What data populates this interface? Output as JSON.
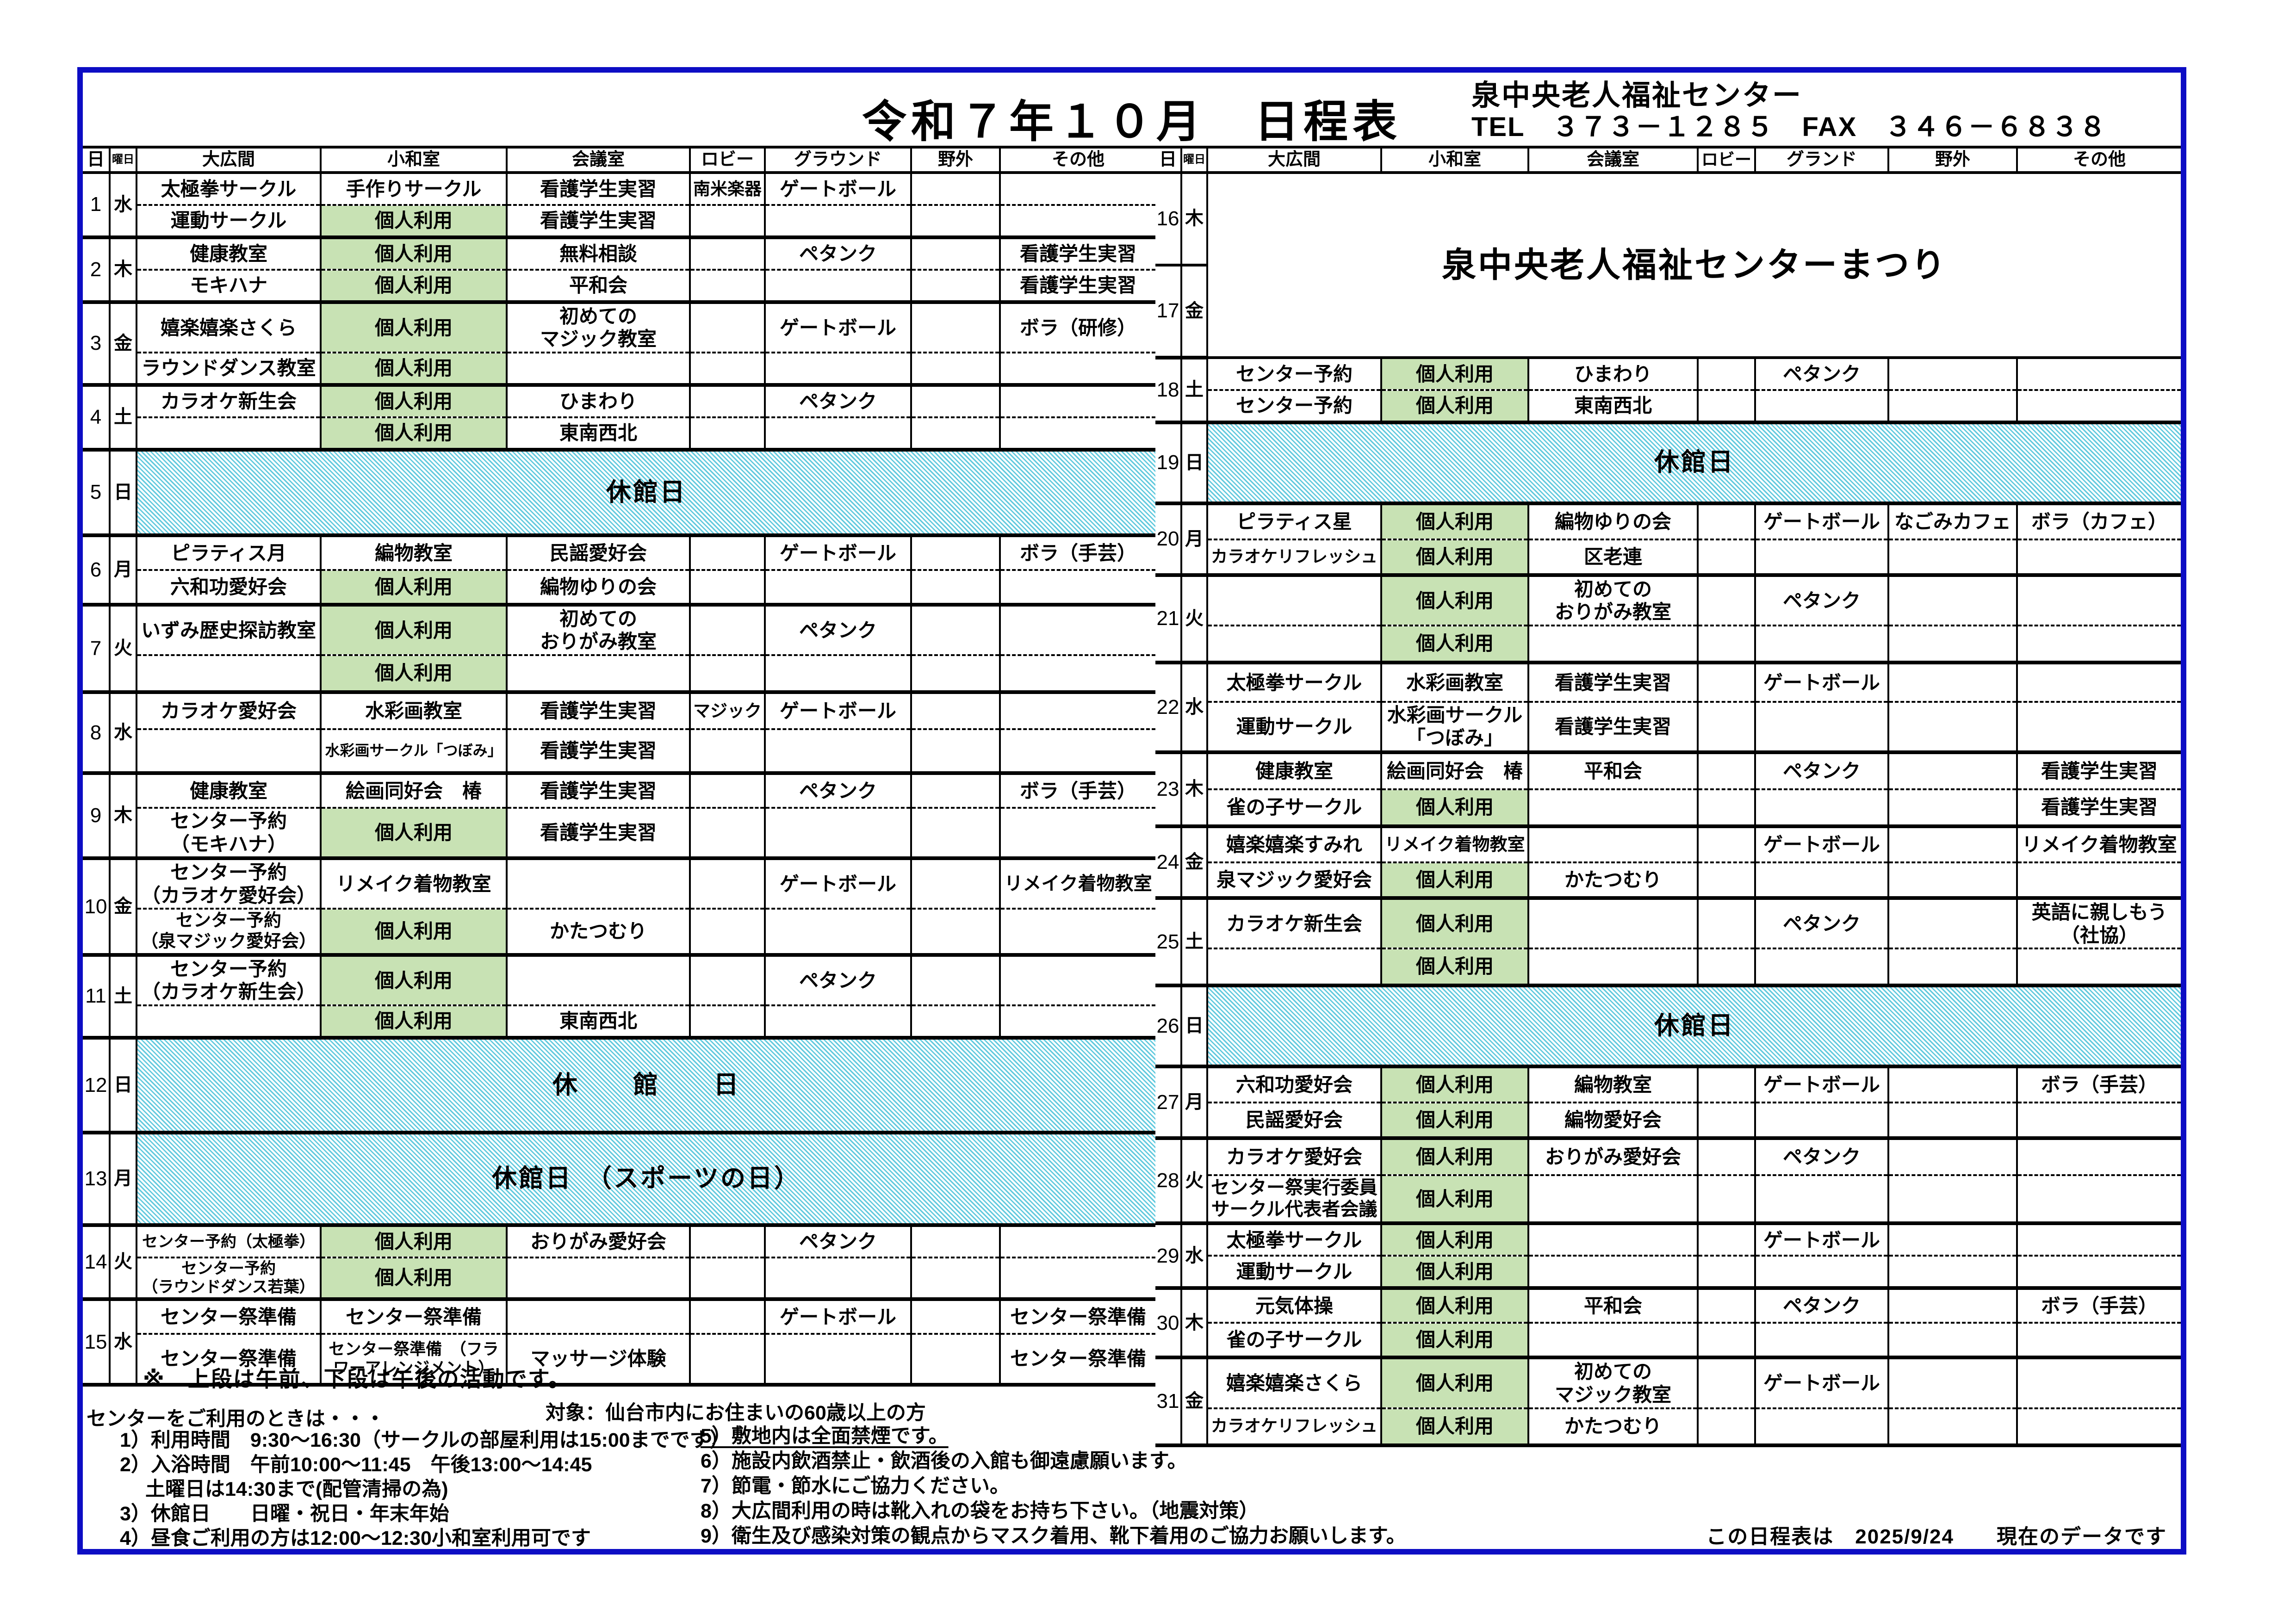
{
  "header": {
    "title": "令和７年１０月　日程表",
    "facility_name": "泉中央老人福祉センター",
    "tel_fax": "TEL　３７３－１２８５　FAX　３４６－６８３８"
  },
  "legend": {
    "green_label": "個人利用"
  },
  "colors": {
    "green": "#c8e2b4",
    "hatch_teal": "#63cade",
    "border_blue": "#0d0dc4"
  },
  "table_left": {
    "columns": [
      "日",
      "曜日",
      "大広間",
      "小和室",
      "会議室",
      "ロビー",
      "グラウンド",
      "野外",
      "その他"
    ],
    "rows": [
      {
        "day": "1",
        "weekday": "水",
        "type": "normal",
        "am": [
          "太極拳サークル",
          "手作りサークル",
          "看護学生実習",
          "南米楽器",
          "ゲートボール",
          "",
          ""
        ],
        "pm": [
          "運動サークル",
          "個人利用",
          "看護学生実習",
          "",
          "",
          "",
          ""
        ]
      },
      {
        "day": "2",
        "weekday": "木",
        "type": "normal",
        "am": [
          "健康教室",
          "個人利用",
          "無料相談",
          "",
          "ペタンク",
          "",
          "看護学生実習"
        ],
        "pm": [
          "モキハナ",
          "個人利用",
          "平和会",
          "",
          "",
          "",
          "看護学生実習"
        ]
      },
      {
        "day": "3",
        "weekday": "金",
        "type": "normal",
        "am": [
          "嬉楽嬉楽さくら",
          "個人利用",
          "初めての\nマジック教室",
          "",
          "ゲートボール",
          "",
          "ボラ（研修）"
        ],
        "pm": [
          "ラウンドダンス教室",
          "個人利用",
          "",
          "",
          "",
          "",
          ""
        ]
      },
      {
        "day": "4",
        "weekday": "土",
        "type": "normal",
        "am": [
          "カラオケ新生会",
          "個人利用",
          "ひまわり",
          "",
          "ペタンク",
          "",
          ""
        ],
        "pm": [
          "",
          "個人利用",
          "東南西北",
          "",
          "",
          "",
          ""
        ]
      },
      {
        "day": "5",
        "weekday": "日",
        "type": "closed",
        "label": "休館日"
      },
      {
        "day": "6",
        "weekday": "月",
        "type": "normal",
        "am": [
          "ピラティス月",
          "編物教室",
          "民謡愛好会",
          "",
          "ゲートボール",
          "",
          "ボラ（手芸）"
        ],
        "pm": [
          "六和功愛好会",
          "個人利用",
          "編物ゆりの会",
          "",
          "",
          "",
          ""
        ]
      },
      {
        "day": "7",
        "weekday": "火",
        "type": "normal",
        "am": [
          "いずみ歴史探訪教室",
          "個人利用",
          "初めての\nおりがみ教室",
          "",
          "ペタンク",
          "",
          ""
        ],
        "pm": [
          "",
          "個人利用",
          "",
          "",
          "",
          "",
          ""
        ]
      },
      {
        "day": "8",
        "weekday": "水",
        "type": "normal",
        "am": [
          "カラオケ愛好会",
          "水彩画教室",
          "看護学生実習",
          "マジック",
          "ゲートボール",
          "",
          ""
        ],
        "pm": [
          "",
          "水彩画サークル「つぼみ」",
          "看護学生実習",
          "",
          "",
          "",
          ""
        ]
      },
      {
        "day": "9",
        "weekday": "木",
        "type": "normal",
        "am": [
          "健康教室",
          "絵画同好会　椿",
          "看護学生実習",
          "",
          "ペタンク",
          "",
          "ボラ（手芸）"
        ],
        "pm": [
          "センター予約\n（モキハナ）",
          "個人利用",
          "看護学生実習",
          "",
          "",
          "",
          ""
        ]
      },
      {
        "day": "10",
        "weekday": "金",
        "type": "normal",
        "am": [
          "センター予約\n（カラオケ愛好会）",
          "リメイク着物教室",
          "",
          "",
          "ゲートボール",
          "",
          "リメイク着物教室"
        ],
        "pm": [
          "センター予約\n（泉マジック愛好会）",
          "個人利用",
          "かたつむり",
          "",
          "",
          "",
          ""
        ]
      },
      {
        "day": "11",
        "weekday": "土",
        "type": "normal",
        "am": [
          "センター予約\n（カラオケ新生会）",
          "個人利用",
          "",
          "",
          "ペタンク",
          "",
          ""
        ],
        "pm": [
          "",
          "個人利用",
          "東南西北",
          "",
          "",
          "",
          ""
        ]
      },
      {
        "day": "12",
        "weekday": "日",
        "type": "closed",
        "label": "休　　館　　日"
      },
      {
        "day": "13",
        "weekday": "月",
        "type": "closed",
        "label": "休館日　（スポーツの日）"
      },
      {
        "day": "14",
        "weekday": "火",
        "type": "normal",
        "am": [
          "センター予約（太極拳）",
          "個人利用",
          "おりがみ愛好会",
          "",
          "ペタンク",
          "",
          ""
        ],
        "pm": [
          "センター予約\n（ラウンドダンス若葉）",
          "個人利用",
          "",
          "",
          "",
          "",
          ""
        ]
      },
      {
        "day": "15",
        "weekday": "水",
        "type": "normal",
        "am": [
          "センター祭準備",
          "センター祭準備",
          "",
          "",
          "ゲートボール",
          "",
          "センター祭準備"
        ],
        "pm": [
          "センター祭準備",
          "センター祭準備　（フラ\nワーアレンジメント）",
          "マッサージ体験",
          "",
          "",
          "",
          "センター祭準備"
        ]
      }
    ]
  },
  "table_right": {
    "columns": [
      "日",
      "曜日",
      "大広間",
      "小和室",
      "会議室",
      "ロビー",
      "グランド",
      "野外",
      "その他"
    ],
    "festival": {
      "days": [
        {
          "day": "16",
          "weekday": "木"
        },
        {
          "day": "17",
          "weekday": "金"
        }
      ],
      "label": "泉中央老人福祉センターまつり"
    },
    "rows": [
      {
        "day": "18",
        "weekday": "土",
        "type": "normal",
        "am": [
          "センター予約",
          "個人利用",
          "ひまわり",
          "",
          "ペタンク",
          "",
          ""
        ],
        "pm": [
          "センター予約",
          "個人利用",
          "東南西北",
          "",
          "",
          "",
          ""
        ]
      },
      {
        "day": "19",
        "weekday": "日",
        "type": "closed",
        "label": "休館日"
      },
      {
        "day": "20",
        "weekday": "月",
        "type": "normal",
        "am": [
          "ピラティス星",
          "個人利用",
          "編物ゆりの会",
          "",
          "ゲートボール",
          "なごみカフェ",
          "ボラ（カフェ）"
        ],
        "pm": [
          "カラオケリフレッシュ",
          "個人利用",
          "区老連",
          "",
          "",
          "",
          ""
        ]
      },
      {
        "day": "21",
        "weekday": "火",
        "type": "normal",
        "am": [
          "",
          "個人利用",
          "初めての\nおりがみ教室",
          "",
          "ペタンク",
          "",
          ""
        ],
        "pm": [
          "",
          "個人利用",
          "",
          "",
          "",
          "",
          ""
        ]
      },
      {
        "day": "22",
        "weekday": "水",
        "type": "normal",
        "am": [
          "太極拳サークル",
          "水彩画教室",
          "看護学生実習",
          "",
          "ゲートボール",
          "",
          ""
        ],
        "pm": [
          "運動サークル",
          "水彩画サークル\n「つぼみ」",
          "看護学生実習",
          "",
          "",
          "",
          ""
        ]
      },
      {
        "day": "23",
        "weekday": "木",
        "type": "normal",
        "am": [
          "健康教室",
          "絵画同好会　椿",
          "平和会",
          "",
          "ペタンク",
          "",
          "看護学生実習"
        ],
        "pm": [
          "雀の子サークル",
          "個人利用",
          "",
          "",
          "",
          "",
          "看護学生実習"
        ]
      },
      {
        "day": "24",
        "weekday": "金",
        "type": "normal",
        "am": [
          "嬉楽嬉楽すみれ",
          "リメイク着物教室",
          "",
          "",
          "ゲートボール",
          "",
          "リメイク着物教室"
        ],
        "pm": [
          "泉マジック愛好会",
          "個人利用",
          "かたつむり",
          "",
          "",
          "",
          ""
        ]
      },
      {
        "day": "25",
        "weekday": "土",
        "type": "normal",
        "am": [
          "カラオケ新生会",
          "個人利用",
          "",
          "",
          "ペタンク",
          "",
          "英語に親しもう\n（社協）"
        ],
        "pm": [
          "",
          "個人利用",
          "",
          "",
          "",
          "",
          ""
        ]
      },
      {
        "day": "26",
        "weekday": "日",
        "type": "closed",
        "label": "休館日"
      },
      {
        "day": "27",
        "weekday": "月",
        "type": "normal",
        "am": [
          "六和功愛好会",
          "個人利用",
          "編物教室",
          "",
          "ゲートボール",
          "",
          "ボラ（手芸）"
        ],
        "pm": [
          "民謡愛好会",
          "個人利用",
          "編物愛好会",
          "",
          "",
          "",
          ""
        ]
      },
      {
        "day": "28",
        "weekday": "火",
        "type": "normal",
        "am": [
          "カラオケ愛好会",
          "個人利用",
          "おりがみ愛好会",
          "",
          "ペタンク",
          "",
          ""
        ],
        "pm": [
          "センター祭実行委員\nサークル代表者会議",
          "個人利用",
          "",
          "",
          "",
          "",
          ""
        ]
      },
      {
        "day": "29",
        "weekday": "水",
        "type": "normal",
        "am": [
          "太極拳サークル",
          "個人利用",
          "",
          "",
          "ゲートボール",
          "",
          ""
        ],
        "pm": [
          "運動サークル",
          "個人利用",
          "",
          "",
          "",
          "",
          ""
        ]
      },
      {
        "day": "30",
        "weekday": "木",
        "type": "normal",
        "am": [
          "元気体操",
          "個人利用",
          "平和会",
          "",
          "ペタンク",
          "",
          "ボラ（手芸）"
        ],
        "pm": [
          "雀の子サークル",
          "個人利用",
          "",
          "",
          "",
          "",
          ""
        ]
      },
      {
        "day": "31",
        "weekday": "金",
        "type": "normal",
        "am": [
          "嬉楽嬉楽さくら",
          "個人利用",
          "初めての\nマジック教室",
          "",
          "ゲートボール",
          "",
          ""
        ],
        "pm": [
          "カラオケリフレッシュ",
          "個人利用",
          "かたつむり",
          "",
          "",
          "",
          ""
        ]
      }
    ]
  },
  "footer": {
    "note": "※　上段は午前、下段は午後の活動です。",
    "usage_intro": "センターをご利用のときは・・・",
    "target": "対象：仙台市内にお住まいの60歳以上の方",
    "usage_items": [
      "1）利用時間　9:30～16:30（サークルの部屋利用は15:00までです）",
      "2）入浴時間　午前10:00～11:45　午後13:00～14:45",
      "　 土曜日は14:30まで(配管清掃の為)",
      "3）休館日　　日曜・祝日・年末年始",
      "4）昼食ご利用の方は12:00～12:30小和室利用可です"
    ],
    "rule_items": [
      {
        "text": "5）敷地内は全面禁煙です。",
        "underline": true
      },
      {
        "text": "6）施設内飲酒禁止・飲酒後の入館も御遠慮願います。",
        "underline": false
      },
      {
        "text": "7）節電・節水にご協力ください。",
        "underline": false
      },
      {
        "text": "8）大広間利用の時は靴入れの袋をお持ち下さい。（地震対策）",
        "underline": false
      },
      {
        "text": "9）衛生及び感染対策の観点からマスク着用、靴下着用のご協力お願いします。",
        "underline": false
      }
    ],
    "data_note": "この日程表は　2025/9/24　　現在のデータです"
  }
}
